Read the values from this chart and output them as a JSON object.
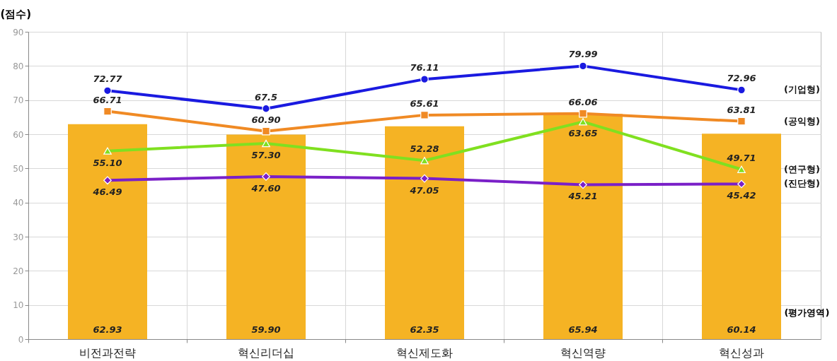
{
  "chart_data": {
    "type": "line",
    "ylabel": "(점수)",
    "xlabel": "(평가영역)",
    "categories": [
      "비전과전략",
      "혁신리더십",
      "혁신제도화",
      "혁신역량",
      "혁신성과"
    ],
    "ylim": [
      0,
      90
    ],
    "yticks": [
      0,
      10,
      20,
      30,
      40,
      50,
      60,
      70,
      80,
      90
    ],
    "grid": true,
    "data_labels": true,
    "series": [
      {
        "type": "bar",
        "color": "#f5b324",
        "values": [
          62.93,
          59.9,
          62.35,
          65.94,
          60.14
        ],
        "value_labels": [
          "62.93",
          "59.90",
          "62.35",
          "65.94",
          "60.14"
        ]
      },
      {
        "name": "(기업형)",
        "color": "#1a1ae0",
        "marker": "circle",
        "values": [
          72.77,
          67.5,
          76.11,
          79.99,
          72.96
        ],
        "value_labels": [
          "72.77",
          "67.5",
          "76.11",
          "79.99",
          "72.96"
        ]
      },
      {
        "name": "(공익형)",
        "color": "#f08a24",
        "marker": "square",
        "values": [
          66.71,
          60.9,
          65.61,
          66.06,
          63.81
        ],
        "value_labels": [
          "66.71",
          "60.90",
          "65.61",
          "66.06",
          "63.81"
        ]
      },
      {
        "name": "(연구형)",
        "color": "#80e020",
        "marker": "triangle",
        "values": [
          55.1,
          57.3,
          52.28,
          63.65,
          49.71
        ],
        "value_labels": [
          "55.10",
          "57.30",
          "52.28",
          "63.65",
          "49.71"
        ]
      },
      {
        "name": "(진단형)",
        "color": "#7a20c8",
        "marker": "diamond",
        "values": [
          46.49,
          47.6,
          47.05,
          45.21,
          45.42
        ],
        "value_labels": [
          "46.49",
          "47.60",
          "47.05",
          "45.21",
          "45.42"
        ]
      }
    ]
  }
}
